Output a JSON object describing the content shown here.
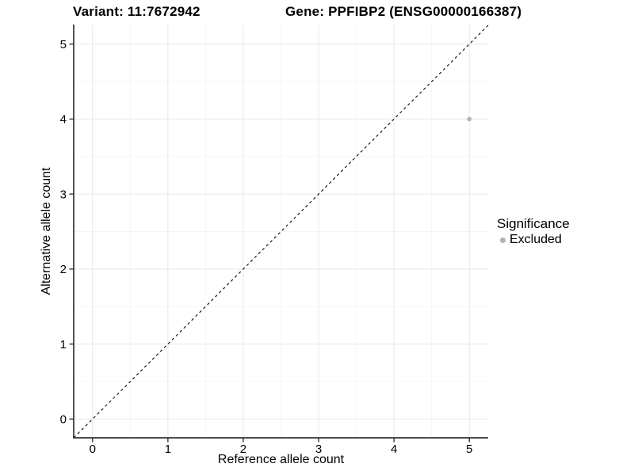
{
  "chart_data": {
    "type": "scatter",
    "title_left": "Variant: 11:7672942",
    "title_right": "Gene: PPFIBP2 (ENSG00000166387)",
    "xlabel": "Reference allele count",
    "ylabel": "Alternative allele count",
    "xlim": [
      -0.25,
      5.25
    ],
    "ylim": [
      -0.25,
      5.25
    ],
    "x_ticks": [
      0,
      1,
      2,
      3,
      4,
      5
    ],
    "y_ticks": [
      0,
      1,
      2,
      3,
      4,
      5
    ],
    "x_minor": [
      0.5,
      1.5,
      2.5,
      3.5,
      4.5
    ],
    "y_minor": [
      0.5,
      1.5,
      2.5,
      3.5,
      4.5
    ],
    "grid": true,
    "points": [
      {
        "x": 5,
        "y": 4,
        "series": "Excluded"
      }
    ],
    "identity_line": {
      "style": "dashed",
      "from": [
        -0.25,
        -0.25
      ],
      "to": [
        5.25,
        5.25
      ]
    },
    "legend": {
      "position": "right",
      "title": "Significance",
      "entries": [
        {
          "label": "Excluded",
          "color": "#b3b3b3",
          "marker": "circle"
        }
      ]
    },
    "colors": {
      "point": "#b3b3b3",
      "grid_major": "#ebebeb",
      "grid_minor": "#f4f4f4",
      "axis": "#333333",
      "dashed_line": "#1a1a1a",
      "text": "#000000"
    }
  }
}
